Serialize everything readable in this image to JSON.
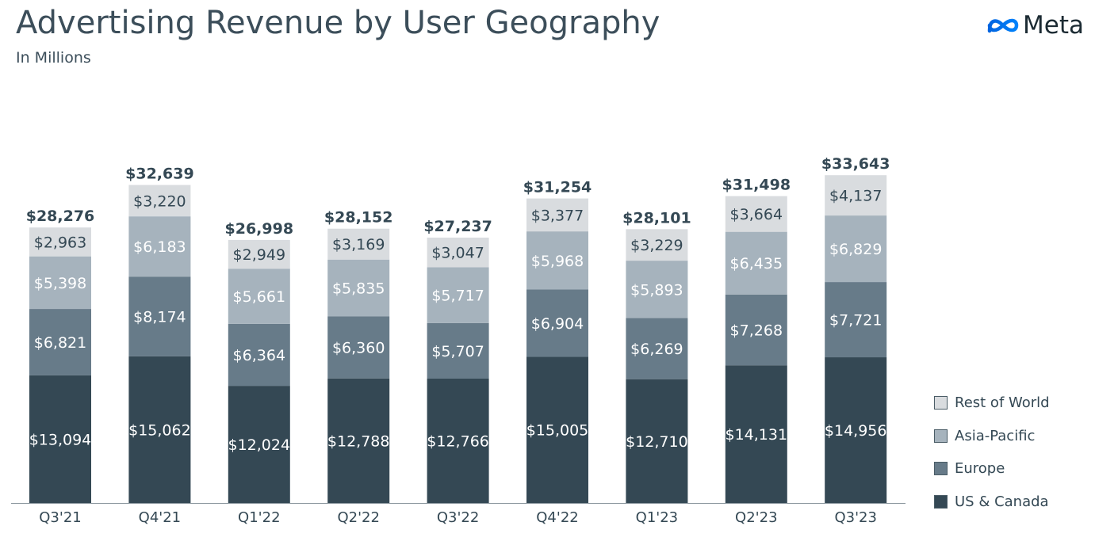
{
  "header": {
    "title": "Advertising Revenue by User Geography",
    "subtitle": "In Millions",
    "logo_text": "Meta",
    "logo_icon": "meta-infinity-icon"
  },
  "legend": {
    "items": [
      {
        "label": "Rest of World",
        "color": "#d9dcdf"
      },
      {
        "label": "Asia-Pacific",
        "color": "#a6b3bd"
      },
      {
        "label": "Europe",
        "color": "#677b89"
      },
      {
        "label": "US & Canada",
        "color": "#344854"
      }
    ]
  },
  "chart_data": {
    "type": "bar",
    "stacked": true,
    "title": "Advertising Revenue by User Geography",
    "subtitle": "In Millions",
    "categories": [
      "Q3'21",
      "Q4'21",
      "Q1'22",
      "Q2'22",
      "Q3'22",
      "Q4'22",
      "Q1'23",
      "Q2'23",
      "Q3'23"
    ],
    "series": [
      {
        "name": "US & Canada",
        "color": "#344854",
        "label_color": "#ffffff",
        "values": [
          13094,
          15062,
          12024,
          12788,
          12766,
          15005,
          12710,
          14131,
          14956
        ],
        "labels": [
          "$13,094",
          "$15,062",
          "$12,024",
          "$12,788",
          "$12,766",
          "$15,005",
          "$12,710",
          "$14,131",
          "$14,956"
        ]
      },
      {
        "name": "Europe",
        "color": "#677b89",
        "label_color": "#ffffff",
        "values": [
          6821,
          8174,
          6364,
          6360,
          5707,
          6904,
          6269,
          7268,
          7721
        ],
        "labels": [
          "$6,821",
          "$8,174",
          "$6,364",
          "$6,360",
          "$5,707",
          "$6,904",
          "$6,269",
          "$7,268",
          "$7,721"
        ]
      },
      {
        "name": "Asia-Pacific",
        "color": "#a6b3bd",
        "label_color": "#ffffff",
        "values": [
          5398,
          6183,
          5661,
          5835,
          5717,
          5968,
          5893,
          6435,
          6829
        ],
        "labels": [
          "$5,398",
          "$6,183",
          "$5,661",
          "$5,835",
          "$5,717",
          "$5,968",
          "$5,893",
          "$6,435",
          "$6,829"
        ]
      },
      {
        "name": "Rest of World",
        "color": "#d9dcdf",
        "label_color": "#344854",
        "values": [
          2963,
          3220,
          2949,
          3169,
          3047,
          3377,
          3229,
          3664,
          4137
        ],
        "labels": [
          "$2,963",
          "$3,220",
          "$2,949",
          "$3,169",
          "$3,047",
          "$3,377",
          "$3,229",
          "$3,664",
          "$4,137"
        ]
      }
    ],
    "totals": [
      28276,
      32639,
      26998,
      28152,
      27237,
      31254,
      28101,
      31498,
      33643
    ],
    "total_labels": [
      "$28,276",
      "$32,639",
      "$26,998",
      "$28,152",
      "$27,237",
      "$31,254",
      "$28,101",
      "$31,498",
      "$33,643"
    ],
    "ylim": [
      0,
      40000
    ],
    "grid": false,
    "legend_position": "right-bottom"
  }
}
